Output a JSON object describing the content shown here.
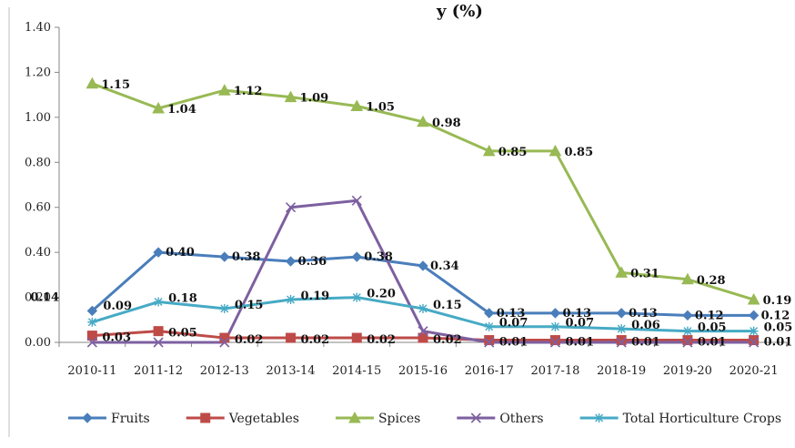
{
  "chart_data": {
    "type": "line",
    "title": "y (%)",
    "ylim": [
      0,
      1.4
    ],
    "yticks": [
      "0.00",
      "0.20",
      "0.40",
      "0.60",
      "0.80",
      "1.00",
      "1.20",
      "1.40"
    ],
    "ytick_values": [
      0,
      0.2,
      0.4,
      0.6,
      0.8,
      1.0,
      1.2,
      1.4
    ],
    "categories": [
      "2010-11",
      "2011-12",
      "2012-13",
      "2013-14",
      "2014-15",
      "2015-16",
      "2016-17",
      "2017-18",
      "2018-19",
      "2019-20",
      "2020-21"
    ],
    "grid": false,
    "legend_position": "bottom",
    "series": [
      {
        "name": "Fruits",
        "color": "#4a7ebb",
        "marker": "diamond",
        "values": [
          0.14,
          0.4,
          0.38,
          0.36,
          0.38,
          0.34,
          0.13,
          0.13,
          0.13,
          0.12,
          0.12
        ],
        "labels": [
          "0.14",
          "0.40",
          "0.38",
          "0.36",
          "0.38",
          "0.34",
          "0.13",
          "0.13",
          "0.13",
          "0.12",
          "0.12"
        ]
      },
      {
        "name": "Vegetables",
        "color": "#be4b48",
        "marker": "square",
        "values": [
          0.03,
          0.05,
          0.02,
          0.02,
          0.02,
          0.02,
          0.01,
          0.01,
          0.01,
          0.01,
          0.01
        ],
        "labels": [
          "0.03",
          "0.05",
          "0.02",
          "0.02",
          "0.02",
          "0.02",
          "0.01",
          "0.01",
          "0.01",
          "0.01",
          "0.01"
        ]
      },
      {
        "name": "Spices",
        "color": "#98b954",
        "marker": "triangle",
        "values": [
          1.15,
          1.04,
          1.12,
          1.09,
          1.05,
          0.98,
          0.85,
          0.85,
          0.31,
          0.28,
          0.19
        ],
        "labels": [
          "1.15",
          "1.04",
          "1.12",
          "1.09",
          "1.05",
          "0.98",
          "0.85",
          "0.85",
          "0.31",
          "0.28",
          "0.19"
        ]
      },
      {
        "name": "Others",
        "color": "#7d60a0",
        "marker": "x",
        "values": [
          0.0,
          0.0,
          0.0,
          0.6,
          0.63,
          0.05,
          0.0,
          0.0,
          0.0,
          0.0,
          0.0
        ],
        "labels": []
      },
      {
        "name": "Total Horticulture Crops",
        "color": "#46aac5",
        "marker": "star",
        "values": [
          0.09,
          0.18,
          0.15,
          0.19,
          0.2,
          0.15,
          0.07,
          0.07,
          0.06,
          0.05,
          0.05
        ],
        "labels": [
          "0.09",
          "0.18",
          "0.15",
          "0.19",
          "0.20",
          "0.15",
          "0.07",
          "0.07",
          "0.06",
          "0.05",
          "0.05"
        ]
      }
    ]
  }
}
